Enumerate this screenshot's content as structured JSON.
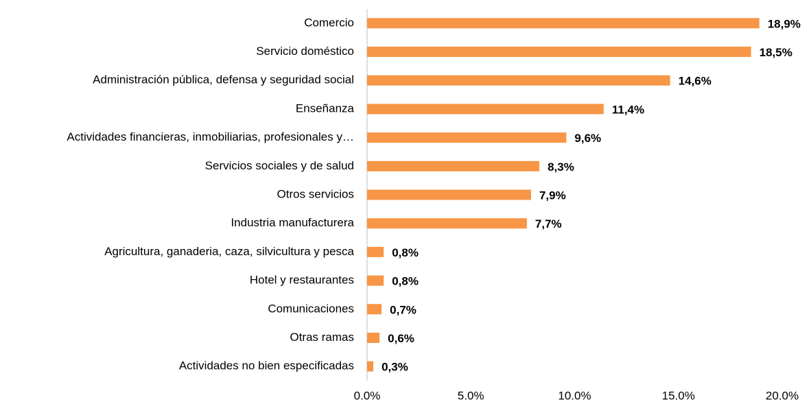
{
  "chart_data": {
    "type": "bar",
    "orientation": "horizontal",
    "categories": [
      "Comercio",
      "Servicio doméstico",
      "Administración pública, defensa y seguridad social",
      "Enseñanza",
      "Actividades financieras, inmobiliarias, profesionales y…",
      "Servicios sociales y de salud",
      "Otros servicios",
      "Industria manufacturera",
      "Agricultura, ganaderia, caza, silvicultura y pesca",
      "Hotel y restaurantes",
      "Comunicaciones",
      "Otras ramas",
      "Actividades no bien especificadas"
    ],
    "values": [
      18.9,
      18.5,
      14.6,
      11.4,
      9.6,
      8.3,
      7.9,
      7.7,
      0.8,
      0.8,
      0.7,
      0.6,
      0.3
    ],
    "value_labels": [
      "18,9%",
      "18,5%",
      "14,6%",
      "11,4%",
      "9,6%",
      "8,3%",
      "7,9%",
      "7,7%",
      "0,8%",
      "0,8%",
      "0,7%",
      "0,6%",
      "0,3%"
    ],
    "color": "#f79646",
    "xlim": [
      0,
      20
    ],
    "xticks": [
      {
        "value": 0,
        "label": "0.0%"
      },
      {
        "value": 5,
        "label": "5.0%"
      },
      {
        "value": 10,
        "label": "10.0%"
      },
      {
        "value": 15,
        "label": "15.0%"
      },
      {
        "value": 20,
        "label": "20.0%"
      }
    ],
    "grid": false
  }
}
